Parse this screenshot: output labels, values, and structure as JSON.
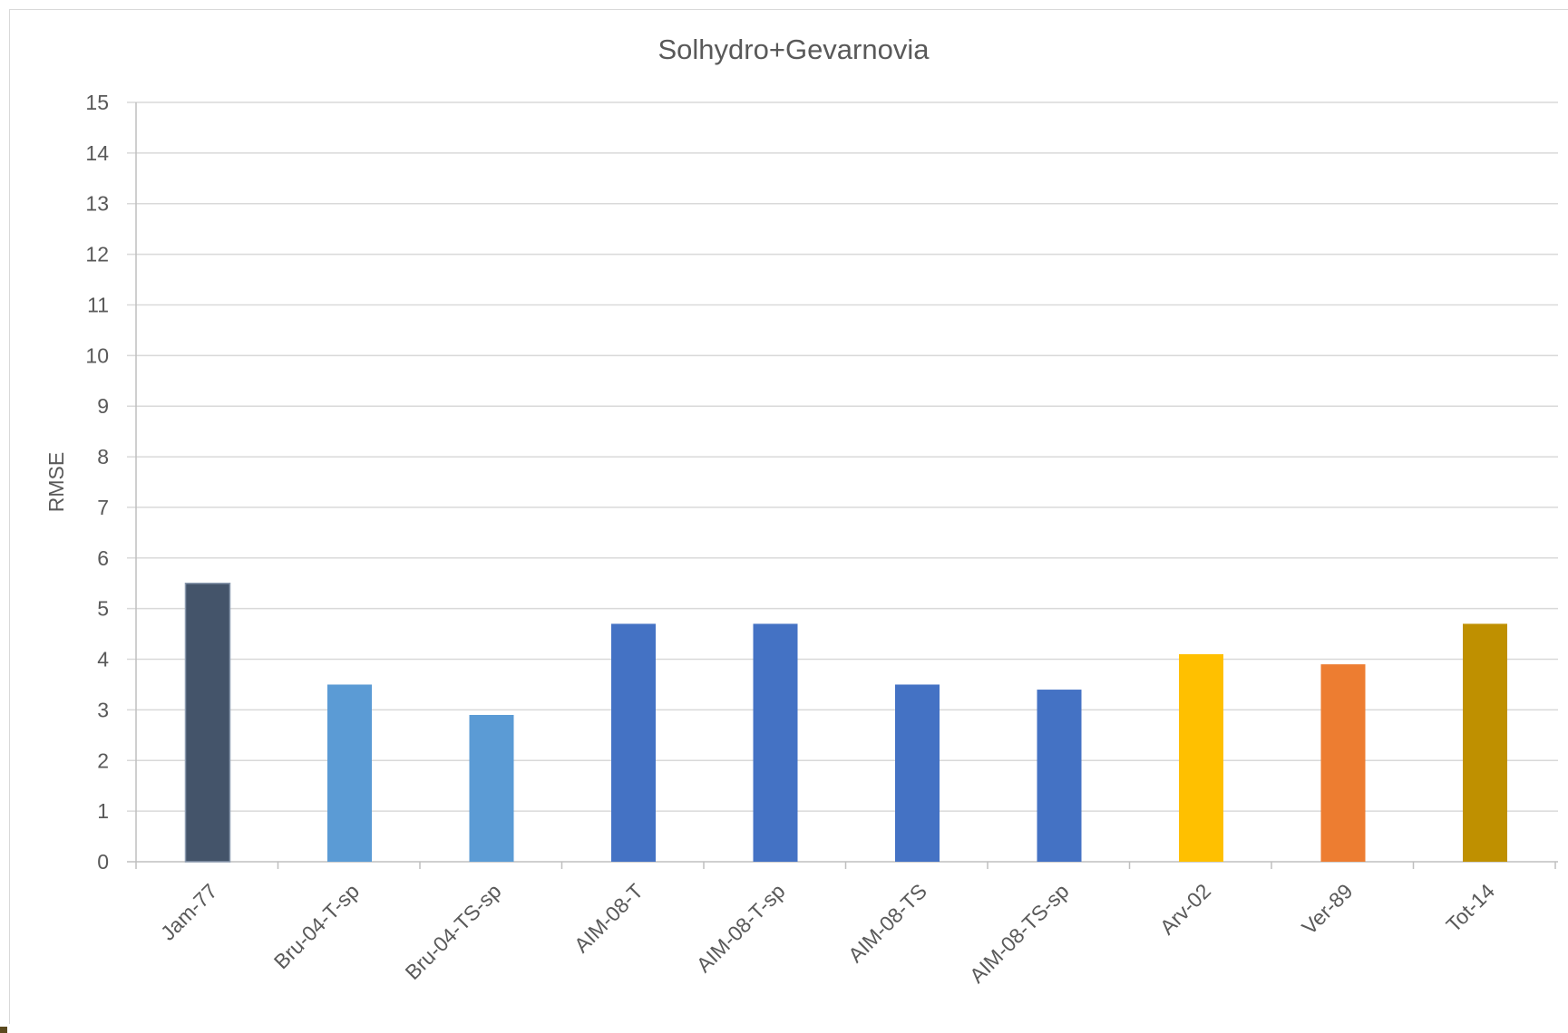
{
  "chart_data": {
    "type": "bar",
    "title": "Solhydro+Gevarnovia",
    "xlabel": "",
    "ylabel": "RMSE",
    "ylim": [
      0,
      15
    ],
    "yticks": [
      "0",
      "1",
      "2",
      "3",
      "4",
      "5",
      "6",
      "7",
      "8",
      "9",
      "10",
      "11",
      "12",
      "13",
      "14",
      "15"
    ],
    "grid": true,
    "legend": "none",
    "categories": [
      "Jam-77",
      "Bru-04-T-sp",
      "Bru-04-TS-sp",
      "AIM-08-T",
      "AIM-08-T-sp",
      "AIM-08-TS",
      "AIM-08-TS-sp",
      "Arv-02",
      "Ver-89",
      "Tot-14"
    ],
    "values": [
      5.5,
      3.5,
      2.9,
      4.7,
      4.7,
      3.5,
      3.4,
      4.1,
      3.9,
      4.7
    ],
    "colors": [
      "#44546a",
      "#5b9bd5",
      "#5b9bd5",
      "#4472c4",
      "#4472c4",
      "#4472c4",
      "#4472c4",
      "#ffc000",
      "#ed7d31",
      "#bf9000"
    ]
  }
}
